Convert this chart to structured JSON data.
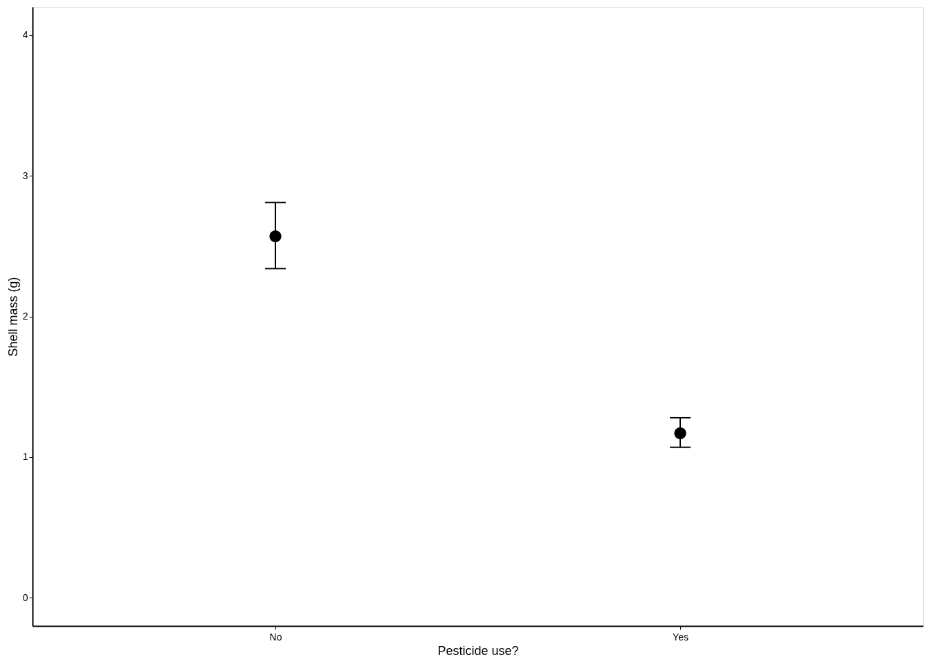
{
  "chart_data": {
    "type": "scatter",
    "xlabel": "Pesticide use?",
    "ylabel": "Shell mass (g)",
    "categories": [
      "No",
      "Yes"
    ],
    "series": [
      {
        "color": "#000000",
        "values": [
          2.57,
          1.17
        ],
        "errors": [
          [
            2.34,
            2.81
          ],
          [
            1.07,
            1.28
          ]
        ]
      }
    ],
    "ylim": [
      -0.2,
      4.2
    ],
    "yticks": [
      0,
      1,
      2,
      3,
      4
    ],
    "grid": false,
    "marker": "circle"
  }
}
